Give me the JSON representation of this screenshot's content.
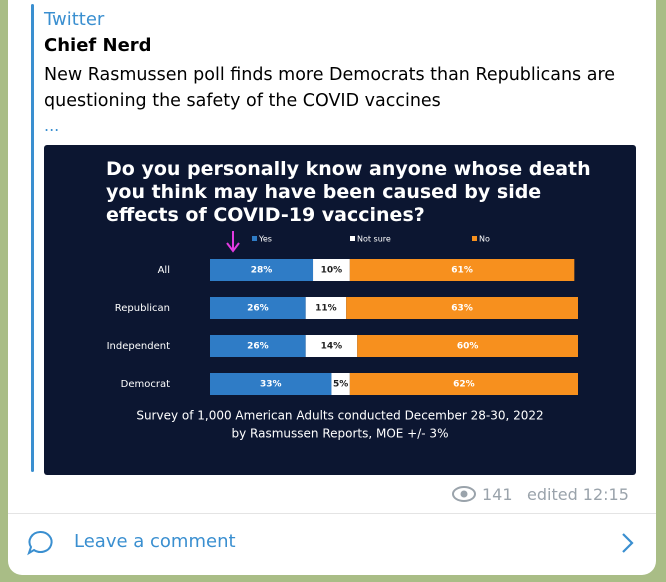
{
  "post": {
    "source": "Twitter",
    "author": "Chief Nerd",
    "text": "New Rasmussen poll finds more Democrats than Republicans are questioning the safety of the COVID vaccines",
    "more": "...",
    "views": 141,
    "edited": "edited 12:15",
    "comment": "Leave a comment"
  },
  "chart_data": {
    "type": "bar",
    "orientation": "horizontal",
    "stacked": true,
    "title": "Do you personally know anyone whose death you think may have been caused by side effects of COVID-19 vaccines?",
    "categories": [
      "All",
      "Republican",
      "Independent",
      "Democrat"
    ],
    "series": [
      {
        "name": "Yes",
        "color": "#2f7cc6",
        "values": [
          28,
          26,
          26,
          33
        ],
        "value_labels": [
          "28%",
          "26%",
          "26%",
          "33%"
        ]
      },
      {
        "name": "Not sure",
        "color": "#ffffff",
        "values": [
          10,
          11,
          14,
          5
        ],
        "value_labels": [
          "10%",
          "11%",
          "14%",
          "5%"
        ]
      },
      {
        "name": "No",
        "color": "#f7901e",
        "values": [
          61,
          63,
          60,
          62
        ],
        "value_labels": [
          "61%",
          "63%",
          "60%",
          "62%"
        ]
      }
    ],
    "xlim": [
      0,
      100
    ],
    "footnote": [
      "Survey of 1,000 American Adults conducted December 28-30, 2022",
      "by Rasmussen Reports, MOE +/- 3%"
    ]
  }
}
